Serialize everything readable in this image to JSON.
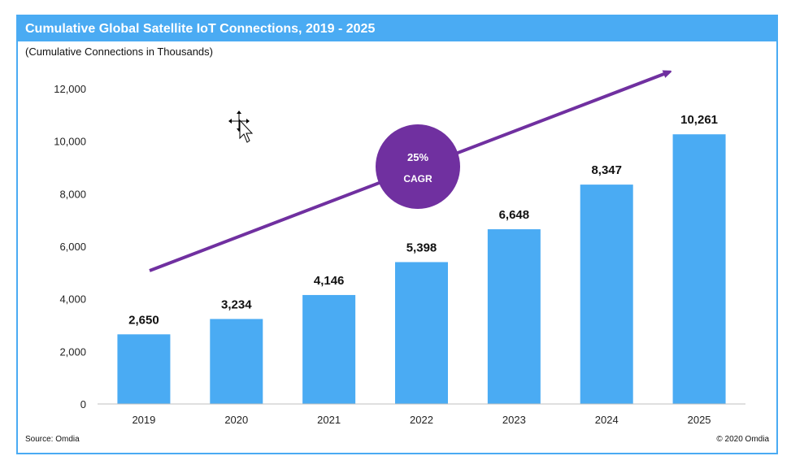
{
  "header": {
    "title": "Cumulative Global Satellite IoT Connections, 2019 - 2025",
    "subtitle": "(Cumulative Connections in Thousands)"
  },
  "footer": {
    "source": "Source: Omdia",
    "copyright": "© 2020 Omdia"
  },
  "cagr": {
    "value": "25%",
    "label": "CAGR"
  },
  "colors": {
    "bar": "#4aabf3",
    "arrow": "#7030a0",
    "circle": "#7030a0",
    "frame": "#4aabf3"
  },
  "chart_data": {
    "type": "bar",
    "title": "Cumulative Global Satellite IoT Connections, 2019 - 2025",
    "subtitle": "(Cumulative Connections in Thousands)",
    "categories": [
      "2019",
      "2020",
      "2021",
      "2022",
      "2023",
      "2024",
      "2025"
    ],
    "values": [
      2650,
      3234,
      4146,
      5398,
      6648,
      8347,
      10261
    ],
    "value_labels": [
      "2,650",
      "3,234",
      "4,146",
      "5,398",
      "6,648",
      "8,347",
      "10,261"
    ],
    "yticks": [
      "0",
      "2,000",
      "4,000",
      "6,000",
      "8,000",
      "10,000",
      "12,000"
    ],
    "ytick_values": [
      0,
      2000,
      4000,
      6000,
      8000,
      10000,
      12000
    ],
    "ylim": [
      0,
      12000
    ],
    "grid": false,
    "legend": "none",
    "annotation": "25% CAGR"
  }
}
